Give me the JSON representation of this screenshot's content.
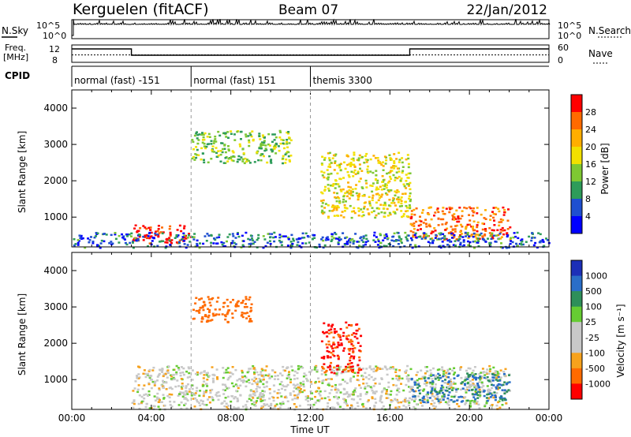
{
  "header": {
    "station": "Kerguelen (fitACF)",
    "beam": "Beam 07",
    "date": "22/Jan/2012"
  },
  "top_panels": {
    "nsky_label": "N.Sky",
    "nsky_ticks": [
      "10^5",
      "10^0"
    ],
    "nsearch_label": "N.Search",
    "freq_label_line1": "Freq.",
    "freq_label_line2": "[MHz]",
    "freq_ticks": [
      "12",
      "8"
    ],
    "nave_label": "Nave",
    "nave_ticks": [
      "60",
      "0"
    ],
    "cpid_label": "CPID",
    "cpid_segments": [
      {
        "label": "normal (fast) -151",
        "start_hour": 0,
        "end_hour": 6
      },
      {
        "label": "normal (fast) 151",
        "start_hour": 6,
        "end_hour": 12
      },
      {
        "label": "themis 3300",
        "start_hour": 12,
        "end_hour": 24
      }
    ],
    "freq_series": [
      {
        "start_hour": 0,
        "end_hour": 3,
        "value": 12
      },
      {
        "start_hour": 3,
        "end_hour": 17,
        "value": 10
      },
      {
        "start_hour": 17,
        "end_hour": 24,
        "value": 12
      }
    ],
    "nave_value": 25
  },
  "time_axis": {
    "label": "Time UT",
    "ticks": [
      "00:00",
      "04:00",
      "08:00",
      "12:00",
      "16:00",
      "20:00",
      "00:00"
    ]
  },
  "chart_data": [
    {
      "type": "heatmap",
      "name": "power",
      "ylabel": "Slant Range [km]",
      "xlabel": "",
      "xlim_hours": [
        0,
        24
      ],
      "ylim_km": [
        180,
        4500
      ],
      "yticks": [
        "1000",
        "2000",
        "3000",
        "4000"
      ],
      "colorbar": {
        "label": "Power [dB]",
        "ticks": [
          "28",
          "24",
          "20",
          "16",
          "12",
          "8",
          "4"
        ],
        "colors": [
          "#ff0000",
          "#ff6a00",
          "#ffae00",
          "#f2e000",
          "#7ec832",
          "#2e9c5a",
          "#1f4fd0",
          "#0000ff"
        ]
      },
      "features": [
        {
          "hours": [
            3,
            6
          ],
          "range_km": [
            300,
            800
          ],
          "level_db": 28
        },
        {
          "hours": [
            17,
            22
          ],
          "range_km": [
            400,
            1300
          ],
          "level_db": 24
        },
        {
          "hours": [
            12.5,
            17
          ],
          "range_km": [
            1000,
            2800
          ],
          "level_db": 16
        },
        {
          "hours": [
            6,
            11
          ],
          "range_km": [
            2500,
            3400
          ],
          "level_db": 12
        },
        {
          "hours": [
            0,
            24
          ],
          "range_km": [
            180,
            600
          ],
          "level_db": 6
        }
      ]
    },
    {
      "type": "heatmap",
      "name": "velocity",
      "ylabel": "Slant Range [km]",
      "xlabel": "Time UT",
      "xlim_hours": [
        0,
        24
      ],
      "ylim_km": [
        180,
        4500
      ],
      "yticks": [
        "1000",
        "2000",
        "3000",
        "4000"
      ],
      "colorbar": {
        "label": "Velocity [m s⁻¹]",
        "ticks": [
          "1000",
          "500",
          "100",
          "25",
          "-25",
          "-100",
          "-500",
          "-1000"
        ],
        "colors": [
          "#1c2fb8",
          "#2a6ec8",
          "#2e8f5a",
          "#66cc33",
          "#c8c8c8",
          "#c8c8c8",
          "#f7a21c",
          "#ff6a00",
          "#ff0000"
        ]
      },
      "features": [
        {
          "hours": [
            3,
            22
          ],
          "range_km": [
            200,
            1400
          ],
          "velocity_ms": 0
        },
        {
          "hours": [
            6,
            9
          ],
          "range_km": [
            2600,
            3300
          ],
          "velocity_ms": -300
        },
        {
          "hours": [
            12.5,
            14.5
          ],
          "range_km": [
            1200,
            2600
          ],
          "velocity_ms": -600
        },
        {
          "hours": [
            17,
            22
          ],
          "range_km": [
            400,
            1200
          ],
          "velocity_ms": 120
        }
      ]
    }
  ]
}
